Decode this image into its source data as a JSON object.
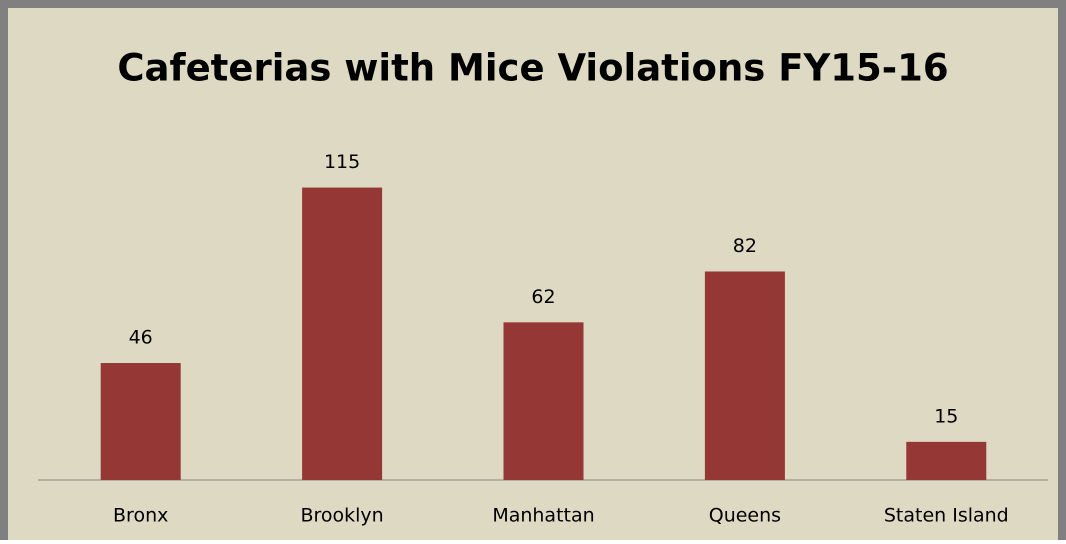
{
  "chart_data": {
    "type": "bar",
    "title": "Cafeterias with Mice Violations FY15-16",
    "categories": [
      "Bronx",
      "Brooklyn",
      "Manhattan",
      "Queens",
      "Staten Island"
    ],
    "values": [
      46,
      115,
      62,
      82,
      15
    ],
    "color": "#953735",
    "ylim": [
      0,
      140
    ],
    "grid": false
  }
}
